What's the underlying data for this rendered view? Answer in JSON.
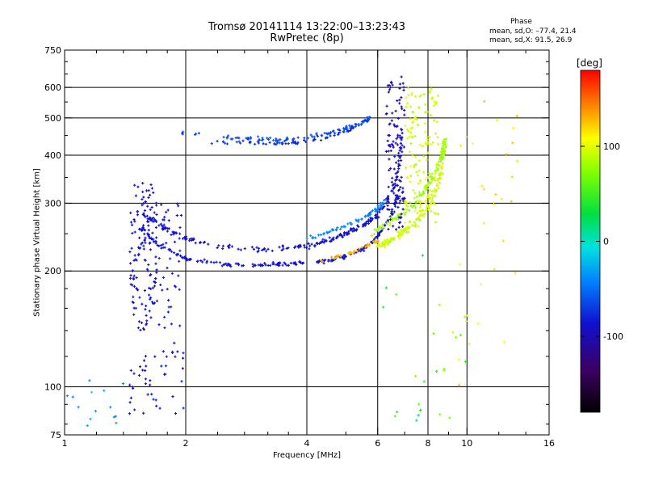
{
  "chart_data": {
    "type": "scatter",
    "title": "Tromsø 20141114 13:22:00–13:23:43",
    "subtitle": "RwPretec (8p)",
    "xlabel": "Frequency [MHz]",
    "ylabel": "Stationary phase Virtual Height [km]",
    "x_scale": "log",
    "y_scale": "log",
    "xlim": [
      1,
      16
    ],
    "ylim": [
      75,
      750
    ],
    "x_ticks": [
      1,
      2,
      4,
      6,
      8,
      10,
      16
    ],
    "y_ticks": [
      75,
      100,
      200,
      300,
      400,
      500,
      600,
      750
    ],
    "x_grid": [
      2,
      4,
      6,
      8,
      10
    ],
    "y_grid": [
      100,
      200,
      300,
      400,
      500,
      600
    ],
    "stats": {
      "heading": "Phase",
      "line_o": "mean, sd,O: –77.4, 21.4",
      "line_x": "mean, sd,X:  91.5, 26.9"
    },
    "colorbar": {
      "label": "[deg]",
      "min": -180,
      "max": 180,
      "ticks": [
        100,
        0,
        -100
      ]
    },
    "traces": [
      {
        "kind": "curve",
        "pts": [
          [
            1.55,
            260
          ],
          [
            1.7,
            235
          ],
          [
            2.0,
            215
          ],
          [
            2.5,
            208
          ],
          [
            3.0,
            207
          ],
          [
            3.5,
            208
          ],
          [
            4.0,
            210
          ],
          [
            4.5,
            213
          ],
          [
            5.0,
            218
          ],
          [
            5.5,
            228
          ],
          [
            6.0,
            245
          ],
          [
            6.5,
            280
          ],
          [
            6.8,
            330
          ]
        ],
        "phase": -85,
        "spread": 6,
        "n": 230,
        "scatter": 0.012
      },
      {
        "kind": "curve",
        "pts": [
          [
            1.55,
            285
          ],
          [
            1.8,
            255
          ],
          [
            2.2,
            235
          ],
          [
            2.8,
            228
          ],
          [
            3.5,
            228
          ],
          [
            4.0,
            232
          ],
          [
            4.5,
            240
          ],
          [
            5.0,
            250
          ],
          [
            5.5,
            262
          ],
          [
            6.0,
            280
          ],
          [
            6.5,
            320
          ],
          [
            6.8,
            380
          ],
          [
            6.9,
            470
          ]
        ],
        "phase": -90,
        "spread": 12,
        "n": 240,
        "scatter": 0.018
      },
      {
        "kind": "curve",
        "pts": [
          [
            4.0,
            242
          ],
          [
            4.5,
            252
          ],
          [
            5.0,
            262
          ],
          [
            5.5,
            275
          ],
          [
            6.0,
            290
          ],
          [
            6.3,
            305
          ]
        ],
        "phase": -40,
        "spread": 10,
        "n": 70,
        "scatter": 0.012
      },
      {
        "kind": "curve",
        "pts": [
          [
            4.3,
            212
          ],
          [
            4.8,
            218
          ],
          [
            5.2,
            224
          ],
          [
            5.6,
            232
          ],
          [
            6.0,
            240
          ]
        ],
        "phase": 130,
        "spread": 20,
        "n": 40,
        "scatter": 0.008
      },
      {
        "kind": "curve",
        "pts": [
          [
            6.0,
            230
          ],
          [
            6.5,
            240
          ],
          [
            7.0,
            255
          ],
          [
            7.5,
            270
          ],
          [
            8.0,
            295
          ],
          [
            8.4,
            330
          ],
          [
            8.7,
            380
          ]
        ],
        "phase": 95,
        "spread": 15,
        "n": 130,
        "scatter": 0.02
      },
      {
        "kind": "curve",
        "pts": [
          [
            5.8,
            250
          ],
          [
            6.5,
            270
          ],
          [
            7.2,
            290
          ],
          [
            7.8,
            320
          ],
          [
            8.3,
            360
          ],
          [
            8.7,
            400
          ],
          [
            8.8,
            440
          ]
        ],
        "phase": 80,
        "spread": 15,
        "n": 130,
        "scatter": 0.02
      },
      {
        "kind": "curve",
        "pts": [
          [
            1.8,
            458
          ],
          [
            2.5,
            445
          ],
          [
            3.0,
            442
          ],
          [
            3.5,
            438
          ],
          [
            4.0,
            445
          ],
          [
            4.5,
            455
          ],
          [
            5.0,
            470
          ],
          [
            5.5,
            488
          ],
          [
            5.8,
            500
          ]
        ],
        "phase": -65,
        "spread": 20,
        "n": 110,
        "scatter": 0.014
      },
      {
        "kind": "curve",
        "pts": [
          [
            2.3,
            430
          ],
          [
            2.8,
            432
          ],
          [
            3.3,
            428
          ],
          [
            3.8,
            432
          ],
          [
            4.3,
            440
          ],
          [
            4.8,
            455
          ],
          [
            5.3,
            470
          ]
        ],
        "phase": -75,
        "spread": 15,
        "n": 60,
        "scatter": 0.012
      },
      {
        "kind": "band",
        "xr": [
          1.45,
          1.7
        ],
        "yr": [
          140,
          340
        ],
        "phase": -90,
        "spread": 15,
        "n": 140
      },
      {
        "kind": "band",
        "xr": [
          1.7,
          1.95
        ],
        "yr": [
          130,
          300
        ],
        "phase": -85,
        "spread": 15,
        "n": 50
      },
      {
        "kind": "band",
        "xr": [
          6.3,
          7.0
        ],
        "yr": [
          250,
          650
        ],
        "phase": -100,
        "spread": 15,
        "n": 110
      },
      {
        "kind": "band",
        "xr": [
          7.0,
          8.5
        ],
        "yr": [
          260,
          600
        ],
        "phase": 95,
        "spread": 20,
        "n": 150
      },
      {
        "kind": "band",
        "xr": [
          1.45,
          2.0
        ],
        "yr": [
          85,
          125
        ],
        "phase": -90,
        "spread": 30,
        "n": 45
      },
      {
        "kind": "band",
        "xr": [
          1.0,
          1.4
        ],
        "yr": [
          78,
          105
        ],
        "phase": -30,
        "spread": 30,
        "n": 14
      },
      {
        "kind": "band",
        "xr": [
          9.5,
          13.5
        ],
        "yr": [
          95,
          620
        ],
        "phase": 110,
        "spread": 30,
        "n": 30
      },
      {
        "kind": "band",
        "xr": [
          6.0,
          10.0
        ],
        "yr": [
          80,
          230
        ],
        "phase": 60,
        "spread": 80,
        "n": 25
      }
    ]
  }
}
